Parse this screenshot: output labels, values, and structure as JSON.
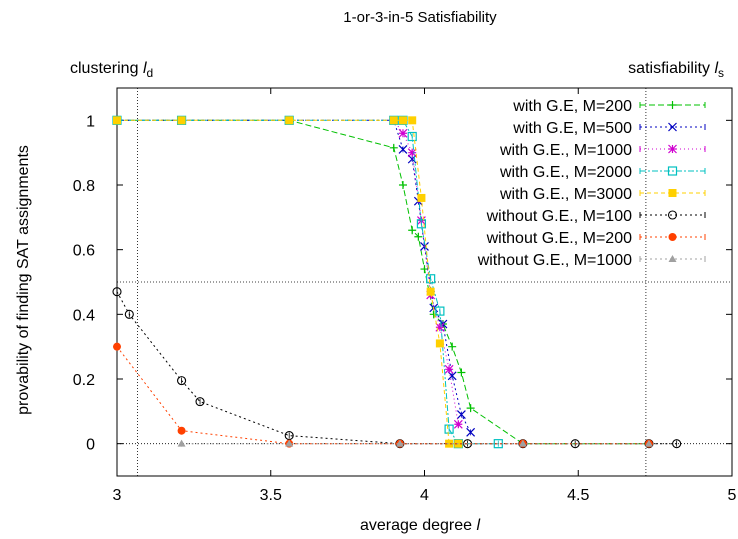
{
  "chart_data": {
    "type": "scatter",
    "title": "1-or-3-in-5 Satisfiability",
    "xlabel": "average degree",
    "xlabel_symbol": "l",
    "ylabel": "provability of finding SAT assignments",
    "xlim": [
      3,
      5
    ],
    "ylim": [
      -0.1,
      1.1
    ],
    "xticks": [
      3,
      3.5,
      4,
      4.5,
      5
    ],
    "xtick_labels": [
      "3",
      "3.5",
      "4",
      "4.5",
      "5"
    ],
    "yticks": [
      0,
      0.2,
      0.4,
      0.6,
      0.8,
      1
    ],
    "ytick_labels": [
      "0",
      "0.2",
      "0.4",
      "0.6",
      "0.8",
      "1"
    ],
    "grid": false,
    "legend_position": "top-right",
    "reference_lines": {
      "clustering": {
        "label": "clustering",
        "symbol": "l",
        "subscript": "d",
        "x": 3.067
      },
      "satisfiability": {
        "label": "satisfiability",
        "symbol": "l",
        "subscript": "s",
        "x": 4.72
      },
      "horizontal": [
        0,
        0.5
      ]
    },
    "series": [
      {
        "name": "with G.E, M=200",
        "color": "#00c000",
        "marker": "plus",
        "dash": "6,3",
        "x": [
          3,
          3.21,
          3.56,
          3.9,
          3.93,
          3.96,
          3.98,
          4.0,
          4.03,
          4.06,
          4.09,
          4.12,
          4.15,
          4.32,
          4.73
        ],
        "y": [
          1,
          1,
          1,
          0.915,
          0.8,
          0.66,
          0.64,
          0.54,
          0.4,
          0.37,
          0.3,
          0.22,
          0.11,
          0.0,
          0.0
        ]
      },
      {
        "name": "with G.E, M=500",
        "color": "#0000c0",
        "marker": "x",
        "dash": "2,3",
        "x": [
          3,
          3.21,
          3.56,
          3.9,
          3.93,
          3.96,
          3.98,
          4.0,
          4.03,
          4.06,
          4.09,
          4.12,
          4.15
        ],
        "y": [
          1,
          1,
          1,
          1,
          0.91,
          0.88,
          0.75,
          0.61,
          0.42,
          0.37,
          0.21,
          0.09,
          0.035
        ]
      },
      {
        "name": "with G.E., M=1000",
        "color": "#d000d0",
        "marker": "star",
        "dash": "1,3",
        "x": [
          3,
          3.21,
          3.56,
          3.9,
          3.93,
          3.96,
          3.99,
          4.02,
          4.05,
          4.08,
          4.11
        ],
        "y": [
          1,
          1,
          1,
          1,
          0.96,
          0.9,
          0.69,
          0.46,
          0.36,
          0.23,
          0.06
        ]
      },
      {
        "name": "with G.E., M=2000",
        "color": "#00c0c0",
        "marker": "square",
        "dash": "6,2,2,2",
        "x": [
          3,
          3.21,
          3.56,
          3.9,
          3.93,
          3.96,
          3.99,
          4.02,
          4.05,
          4.08,
          4.11,
          4.24
        ],
        "y": [
          1,
          1,
          1,
          1,
          1,
          0.95,
          0.68,
          0.51,
          0.41,
          0.045,
          0.0,
          0.0
        ]
      },
      {
        "name": "with G.E., M=3000",
        "color": "#ffd000",
        "marker": "filled-square",
        "dash": "4,3",
        "x": [
          3,
          3.21,
          3.56,
          3.9,
          3.93,
          3.96,
          3.99,
          4.02,
          4.05,
          4.08,
          4.11
        ],
        "y": [
          1,
          1,
          1,
          1,
          1,
          1,
          0.76,
          0.47,
          0.31,
          0.0,
          0.0
        ]
      },
      {
        "name": "without G.E., M=100",
        "color": "#000000",
        "marker": "circle",
        "dash": "2,3",
        "x": [
          3,
          3.04,
          3.21,
          3.27,
          3.56,
          3.92,
          4.14,
          4.32,
          4.49,
          4.73,
          4.82
        ],
        "y": [
          0.47,
          0.4,
          0.195,
          0.13,
          0.025,
          0.0,
          0.0,
          0.0,
          0.0,
          0.0,
          0.0
        ]
      },
      {
        "name": "without G.E., M=200",
        "color": "#ff4000",
        "marker": "filled-circle",
        "dash": "2,3",
        "x": [
          3,
          3.21,
          3.56,
          3.92,
          4.32,
          4.73
        ],
        "y": [
          0.3,
          0.04,
          0.0,
          0.0,
          0.0,
          0.0
        ]
      },
      {
        "name": "without G.E., M=1000",
        "color": "#a0a0a0",
        "marker": "triangle",
        "dash": "2,3",
        "x": [
          3.21,
          3.56,
          3.92,
          4.32,
          4.73
        ],
        "y": [
          0.0,
          0.0,
          0.0,
          0.0,
          0.0
        ]
      }
    ]
  }
}
